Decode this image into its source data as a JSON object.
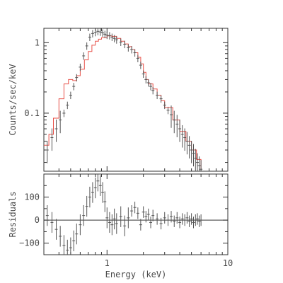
{
  "chart_data": [
    {
      "panel": "spectrum",
      "type": "line",
      "xscale": "log",
      "yscale": "log",
      "xlim": [
        0.3,
        10
      ],
      "ylim": [
        0.015,
        1.6
      ],
      "ylabel": "Counts/sec/keV",
      "y_ticks": [
        {
          "v": 0.1,
          "label": "0.1"
        },
        {
          "v": 1,
          "label": "1"
        }
      ],
      "x_ticks": [
        {
          "v": 1,
          "label": "1"
        }
      ],
      "colors": {
        "data": "#555555",
        "model": "#e8524a",
        "frame": "#333333"
      },
      "series": [
        {
          "role": "model",
          "x": [
            0.3,
            0.33,
            0.36,
            0.4,
            0.44,
            0.48,
            0.52,
            0.56,
            0.6,
            0.65,
            0.7,
            0.75,
            0.8,
            0.85,
            0.9,
            1.0,
            1.1,
            1.2,
            1.3,
            1.4,
            1.5,
            1.6,
            1.7,
            1.8,
            1.9,
            2.0,
            2.1,
            2.2,
            2.4,
            2.6,
            2.8,
            3.0,
            3.5,
            4.0,
            4.5,
            5.0,
            5.5,
            6.0
          ],
          "y": [
            0.035,
            0.05,
            0.085,
            0.16,
            0.26,
            0.3,
            0.29,
            0.34,
            0.42,
            0.57,
            0.75,
            0.92,
            1.05,
            1.12,
            1.18,
            1.25,
            1.23,
            1.15,
            1.05,
            0.96,
            0.88,
            0.8,
            0.72,
            0.62,
            0.5,
            0.38,
            0.3,
            0.26,
            0.22,
            0.18,
            0.15,
            0.12,
            0.08,
            0.055,
            0.04,
            0.03,
            0.022,
            0.016
          ]
        },
        {
          "role": "data",
          "x": [
            0.32,
            0.35,
            0.38,
            0.41,
            0.44,
            0.47,
            0.5,
            0.53,
            0.56,
            0.6,
            0.64,
            0.68,
            0.72,
            0.76,
            0.8,
            0.84,
            0.88,
            0.92,
            0.96,
            1.0,
            1.05,
            1.1,
            1.15,
            1.2,
            1.3,
            1.4,
            1.5,
            1.6,
            1.7,
            1.8,
            1.9,
            2.0,
            2.1,
            2.2,
            2.3,
            2.4,
            2.6,
            2.8,
            3.0,
            3.2,
            3.4,
            3.6,
            3.8,
            4.0,
            4.2,
            4.4,
            4.6,
            4.8,
            5.0,
            5.2,
            5.4,
            5.6,
            5.8,
            6.0
          ],
          "y": [
            0.03,
            0.045,
            0.06,
            0.08,
            0.1,
            0.13,
            0.18,
            0.24,
            0.32,
            0.45,
            0.65,
            0.9,
            1.2,
            1.35,
            1.4,
            1.45,
            1.42,
            1.38,
            1.32,
            1.28,
            1.26,
            1.2,
            1.15,
            1.1,
            1.02,
            0.95,
            0.85,
            0.8,
            0.72,
            0.6,
            0.48,
            0.36,
            0.3,
            0.27,
            0.24,
            0.21,
            0.18,
            0.16,
            0.13,
            0.11,
            0.095,
            0.08,
            0.07,
            0.06,
            0.05,
            0.045,
            0.04,
            0.035,
            0.03,
            0.027,
            0.023,
            0.02,
            0.018,
            0.016
          ]
        }
      ]
    },
    {
      "panel": "residuals",
      "type": "line",
      "xscale": "log",
      "xlim": [
        0.3,
        10
      ],
      "ylim": [
        -150,
        200
      ],
      "xlabel": "Energy (keV)",
      "ylabel": "Residuals",
      "y_ticks": [
        {
          "v": -100,
          "label": "−100"
        },
        {
          "v": 0,
          "label": "0"
        },
        {
          "v": 100,
          "label": "100"
        }
      ],
      "x_ticks": [
        {
          "v": 1,
          "label": "1"
        },
        {
          "v": 10,
          "label": "10"
        }
      ],
      "zero_line": true,
      "colors": {
        "data": "#555555",
        "frame": "#333333"
      },
      "series": [
        {
          "role": "data",
          "x": [
            0.32,
            0.35,
            0.38,
            0.41,
            0.44,
            0.47,
            0.5,
            0.53,
            0.56,
            0.6,
            0.64,
            0.68,
            0.72,
            0.76,
            0.8,
            0.84,
            0.88,
            0.92,
            0.96,
            1.0,
            1.05,
            1.1,
            1.15,
            1.2,
            1.3,
            1.4,
            1.5,
            1.6,
            1.7,
            1.8,
            1.9,
            2.0,
            2.1,
            2.2,
            2.3,
            2.4,
            2.6,
            2.8,
            3.0,
            3.2,
            3.4,
            3.6,
            3.8,
            4.0,
            4.2,
            4.4,
            4.6,
            4.8,
            5.0,
            5.2,
            5.4,
            5.6,
            5.8,
            6.0
          ],
          "y": [
            20,
            -10,
            -40,
            -70,
            -110,
            -130,
            -120,
            -90,
            -60,
            -20,
            20,
            60,
            100,
            120,
            140,
            170,
            150,
            120,
            80,
            10,
            -10,
            -20,
            5,
            -15,
            15,
            -25,
            10,
            40,
            55,
            30,
            -20,
            35,
            15,
            25,
            -10,
            20,
            5,
            -15,
            10,
            0,
            15,
            -5,
            10,
            -10,
            5,
            0,
            10,
            -5,
            5,
            -10,
            0,
            5,
            -5,
            0
          ]
        }
      ]
    }
  ]
}
